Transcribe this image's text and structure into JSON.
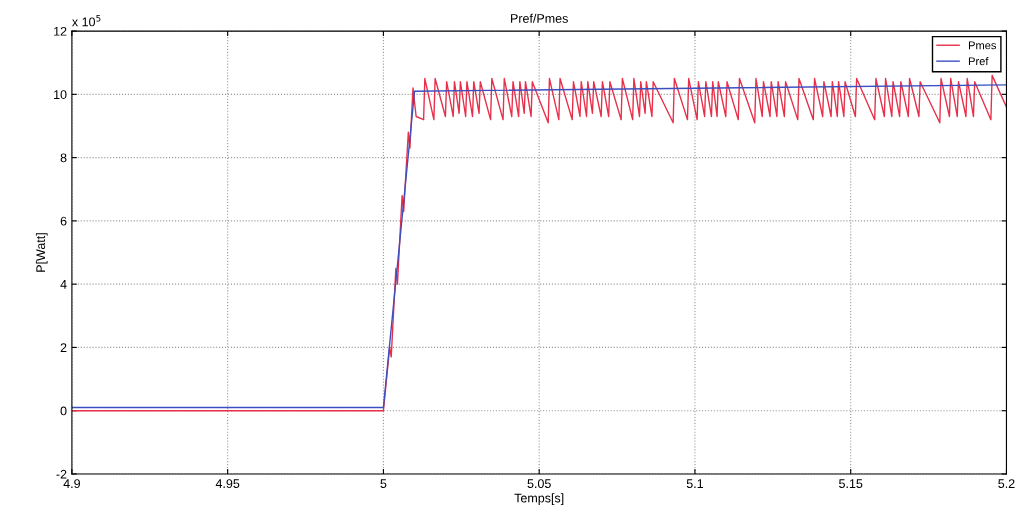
{
  "chart_data": {
    "type": "line",
    "title": "Pref/Pmes",
    "xlabel": "Temps[s]",
    "ylabel": "P[Watt]",
    "annotations": [
      "x 10$^{5}$"
    ],
    "xlim": [
      4.9,
      5.2
    ],
    "xticks": [
      4.9,
      4.95,
      5,
      5.05,
      5.1,
      5.15,
      5.2
    ],
    "ylim": [
      -2,
      12
    ],
    "yticks": [
      -2,
      0,
      2,
      4,
      6,
      8,
      10,
      12
    ],
    "grid": true,
    "legend": "top right",
    "line_style": "solid",
    "marker": "none",
    "series": [
      {
        "name": "Pmes",
        "color": "#e8304a",
        "x": [
          4.9,
          5.0,
          5.002,
          5.0025,
          5.004,
          5.0045,
          5.006,
          5.0065,
          5.008,
          5.0085,
          5.0095,
          5.0105,
          5.0129,
          5.0133,
          5.0162,
          5.0166,
          5.0199,
          5.0203,
          5.0224,
          5.0228,
          5.0243,
          5.0247,
          5.0264,
          5.0268,
          5.0286,
          5.029,
          5.0307,
          5.0311,
          5.0344,
          5.0348,
          5.0384,
          5.0388,
          5.0412,
          5.0416,
          5.0434,
          5.0438,
          5.0452,
          5.0456,
          5.0474,
          5.0478,
          5.0529,
          5.0533,
          5.0563,
          5.0567,
          5.0606,
          5.061,
          5.0631,
          5.0635,
          5.0652,
          5.0656,
          5.0671,
          5.0675,
          5.0699,
          5.0703,
          5.0723,
          5.0727,
          5.0763,
          5.0767,
          5.08,
          5.0804,
          5.0822,
          5.0826,
          5.084,
          5.0844,
          5.0862,
          5.0866,
          5.093,
          5.0934,
          5.0976,
          5.098,
          5.1007,
          5.1011,
          5.1031,
          5.1035,
          5.1053,
          5.1057,
          5.1071,
          5.1075,
          5.1099,
          5.1103,
          5.1139,
          5.1143,
          5.1192,
          5.1196,
          5.1216,
          5.122,
          5.1241,
          5.1245,
          5.1263,
          5.1267,
          5.1287,
          5.1291,
          5.133,
          5.1334,
          5.138,
          5.1384,
          5.141,
          5.1414,
          5.1437,
          5.1441,
          5.1457,
          5.1461,
          5.1478,
          5.1482,
          5.1515,
          5.1519,
          5.1577,
          5.1581,
          5.1608,
          5.1612,
          5.1632,
          5.1636,
          5.1657,
          5.1661,
          5.1685,
          5.1689,
          5.1719,
          5.1723,
          5.1786,
          5.179,
          5.1817,
          5.1821,
          5.1842,
          5.1846,
          5.187,
          5.1874,
          5.1894,
          5.1898,
          5.195,
          5.1954,
          5.2
        ],
        "values": [
          0,
          0,
          2.0,
          1.7,
          4.5,
          4.0,
          6.8,
          6.3,
          8.8,
          8.3,
          10.2,
          9.3,
          9.2,
          10.5,
          9.2,
          10.5,
          9.3,
          10.4,
          9.3,
          10.4,
          9.4,
          10.4,
          9.3,
          10.4,
          9.3,
          10.4,
          9.4,
          10.4,
          9.2,
          10.5,
          9.2,
          10.5,
          9.3,
          10.4,
          9.3,
          10.4,
          9.4,
          10.4,
          9.3,
          10.4,
          9.1,
          10.5,
          9.2,
          10.5,
          9.2,
          10.4,
          9.3,
          10.4,
          9.3,
          10.4,
          9.4,
          10.4,
          9.3,
          10.4,
          9.3,
          10.4,
          9.2,
          10.5,
          9.2,
          10.5,
          9.3,
          10.4,
          9.4,
          10.4,
          9.3,
          10.4,
          9.1,
          10.5,
          9.2,
          10.5,
          9.2,
          10.4,
          9.3,
          10.4,
          9.3,
          10.4,
          9.3,
          10.4,
          9.3,
          10.4,
          9.2,
          10.5,
          9.1,
          10.5,
          9.3,
          10.4,
          9.3,
          10.4,
          9.3,
          10.4,
          9.3,
          10.4,
          9.2,
          10.5,
          9.2,
          10.5,
          9.3,
          10.4,
          9.3,
          10.4,
          9.3,
          10.4,
          9.3,
          10.4,
          9.3,
          10.5,
          9.2,
          10.5,
          9.3,
          10.5,
          9.3,
          10.4,
          9.3,
          10.4,
          9.3,
          10.5,
          9.3,
          10.4,
          9.1,
          10.5,
          9.3,
          10.5,
          9.3,
          10.4,
          9.3,
          10.5,
          9.3,
          10.4,
          9.2,
          10.6,
          9.6
        ]
      },
      {
        "name": "Pref",
        "color": "#3c4fc0",
        "x": [
          4.9,
          5.0,
          5.01,
          5.2
        ],
        "values": [
          0.1,
          0.1,
          10.1,
          10.3
        ]
      }
    ]
  }
}
